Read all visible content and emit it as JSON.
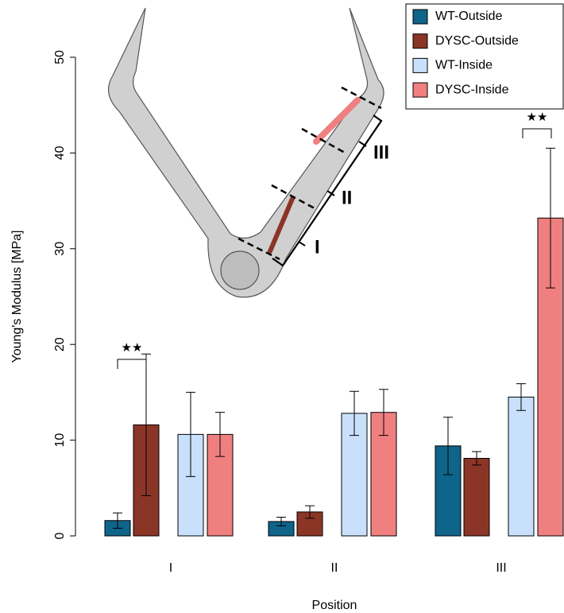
{
  "chart_data": {
    "type": "bar",
    "x_label": "Position",
    "y_label": "Young's Modulus [MPa]",
    "categories": [
      "I",
      "II",
      "III"
    ],
    "series": [
      {
        "name": "WT-Outside",
        "color": "#0f6489",
        "values": [
          1.6,
          1.5,
          9.4
        ],
        "errors": [
          0.8,
          0.45,
          3.0
        ]
      },
      {
        "name": "DYSC-Outside",
        "color": "#8b3527",
        "values": [
          11.6,
          2.5,
          8.1
        ],
        "errors": [
          7.4,
          0.65,
          0.7
        ]
      },
      {
        "name": "WT-Inside",
        "color": "#c8e0fb",
        "values": [
          10.6,
          12.8,
          14.5
        ],
        "errors": [
          4.4,
          2.3,
          1.4
        ]
      },
      {
        "name": "DYSC-Inside",
        "color": "#f08080",
        "values": [
          10.6,
          12.9,
          33.2
        ],
        "errors": [
          2.3,
          2.4,
          7.3
        ]
      }
    ],
    "annotations": [
      "★★",
      "★★"
    ],
    "ylim": [
      0,
      50
    ],
    "yticks": [
      0,
      10,
      20,
      30,
      40,
      50
    ],
    "legend": "top-right"
  }
}
